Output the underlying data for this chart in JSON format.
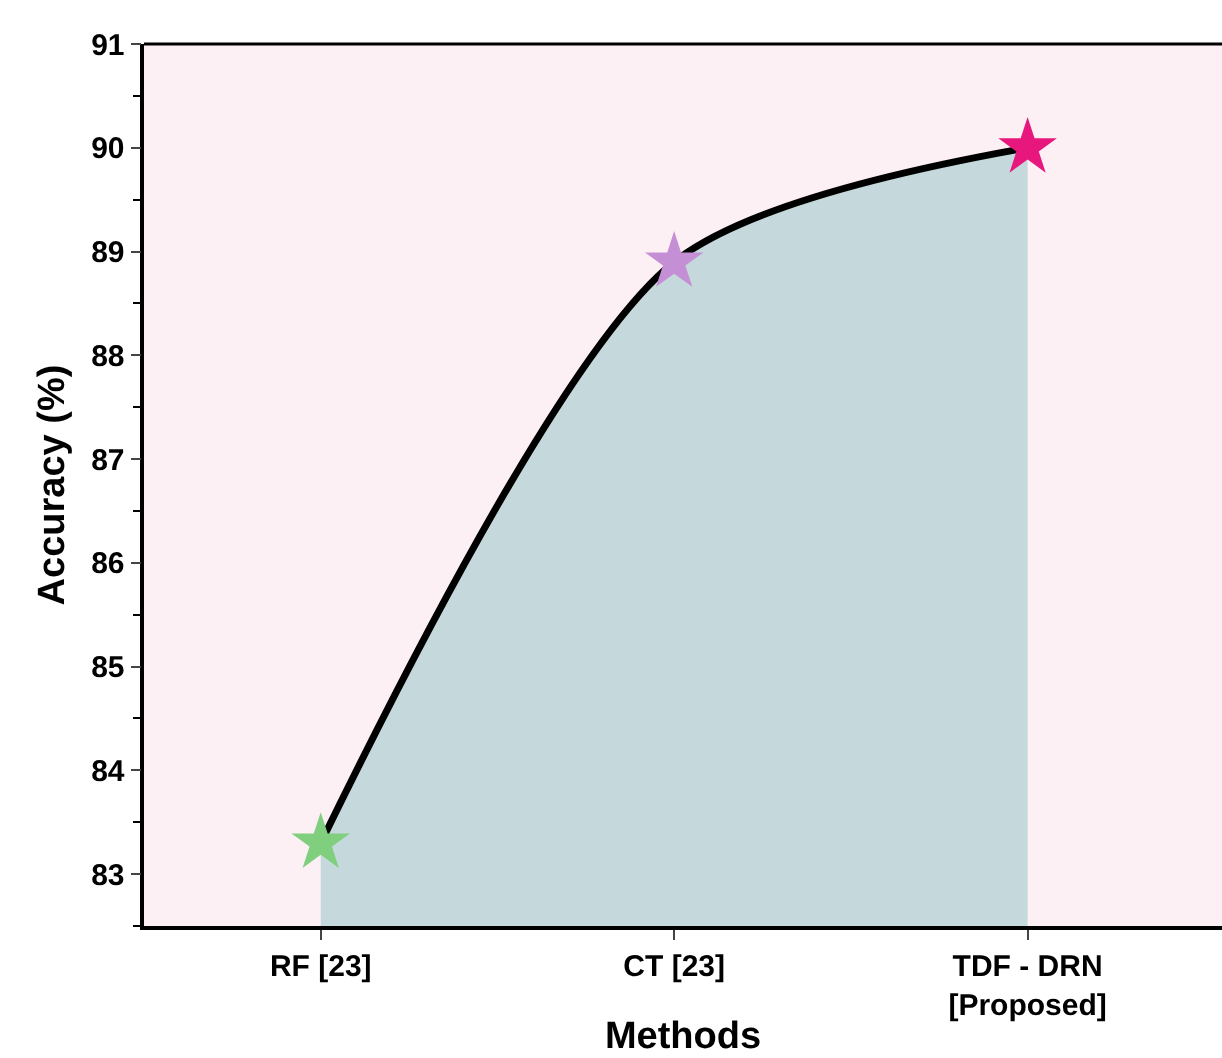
{
  "chart_data": {
    "type": "area",
    "xlabel": "Methods",
    "ylabel": "Accuracy (%)",
    "categories": [
      "RF [23]",
      "CT [23]",
      "TDF - DRN\n[Proposed]"
    ],
    "series": [
      {
        "values": [
          83.3,
          88.9,
          90.0
        ],
        "color": "#000000",
        "colors": [
          "#7fcf7f",
          "#c48fd4",
          "#e8177d"
        ]
      }
    ],
    "ylim": [
      82.5,
      91
    ],
    "yticks": [
      83,
      84,
      85,
      86,
      87,
      88,
      89,
      90,
      91
    ],
    "marker": "star",
    "line_style": "solid",
    "grid": false
  }
}
